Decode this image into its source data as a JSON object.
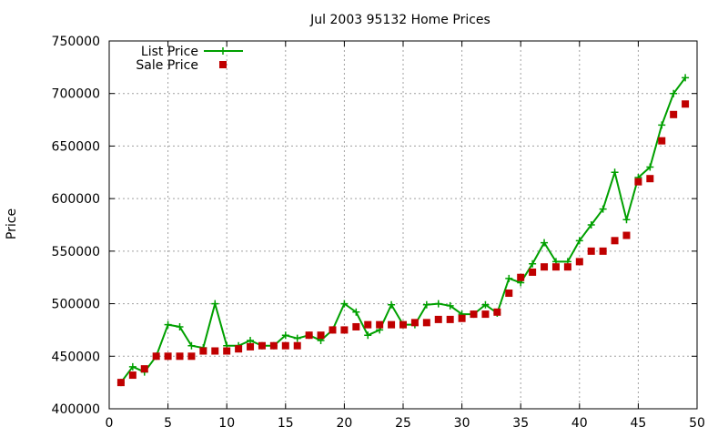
{
  "chart_data": {
    "type": "line",
    "title": "Jul 2003 95132 Home Prices",
    "xlabel": "",
    "ylabel": "Price",
    "xlim": [
      0,
      50
    ],
    "ylim": [
      400000,
      750000
    ],
    "xticks": [
      0,
      5,
      10,
      15,
      20,
      25,
      30,
      35,
      40,
      45,
      50
    ],
    "yticks": [
      400000,
      450000,
      500000,
      550000,
      600000,
      650000,
      700000,
      750000
    ],
    "grid": true,
    "legend_position": "top-left",
    "x": [
      1,
      2,
      3,
      4,
      5,
      6,
      7,
      8,
      9,
      10,
      11,
      12,
      13,
      14,
      15,
      16,
      17,
      18,
      19,
      20,
      21,
      22,
      23,
      24,
      25,
      26,
      27,
      28,
      29,
      30,
      31,
      32,
      33,
      34,
      35,
      36,
      37,
      38,
      39,
      40,
      41,
      42,
      43,
      44,
      45,
      46,
      47,
      48,
      49
    ],
    "series": [
      {
        "name": "List Price",
        "style": "line-plus",
        "color": "#00a000",
        "values": [
          425000,
          440000,
          435000,
          450000,
          480000,
          478000,
          460000,
          458000,
          500000,
          460000,
          460000,
          465000,
          460000,
          460000,
          470000,
          467000,
          470000,
          465000,
          475000,
          500000,
          492000,
          470000,
          475000,
          499000,
          480000,
          480000,
          499000,
          500000,
          498000,
          490000,
          490000,
          499000,
          491000,
          524000,
          520000,
          538000,
          558000,
          540000,
          540000,
          560000,
          575000,
          590000,
          625000,
          580000,
          620000,
          630000,
          670000,
          700000,
          715000
        ]
      },
      {
        "name": "Sale Price",
        "style": "square",
        "color": "#c00000",
        "values": [
          425000,
          432000,
          438000,
          450000,
          450000,
          450000,
          450000,
          455000,
          455000,
          455000,
          457000,
          459000,
          460000,
          460000,
          460000,
          460000,
          470000,
          470000,
          475000,
          475000,
          478000,
          480000,
          480000,
          480000,
          480000,
          482000,
          482000,
          485000,
          485000,
          486000,
          490000,
          490000,
          492000,
          510000,
          525000,
          530000,
          535000,
          535000,
          535000,
          540000,
          550000,
          550000,
          560000,
          565000,
          616000,
          619000,
          655000,
          680000,
          690000
        ]
      }
    ]
  }
}
